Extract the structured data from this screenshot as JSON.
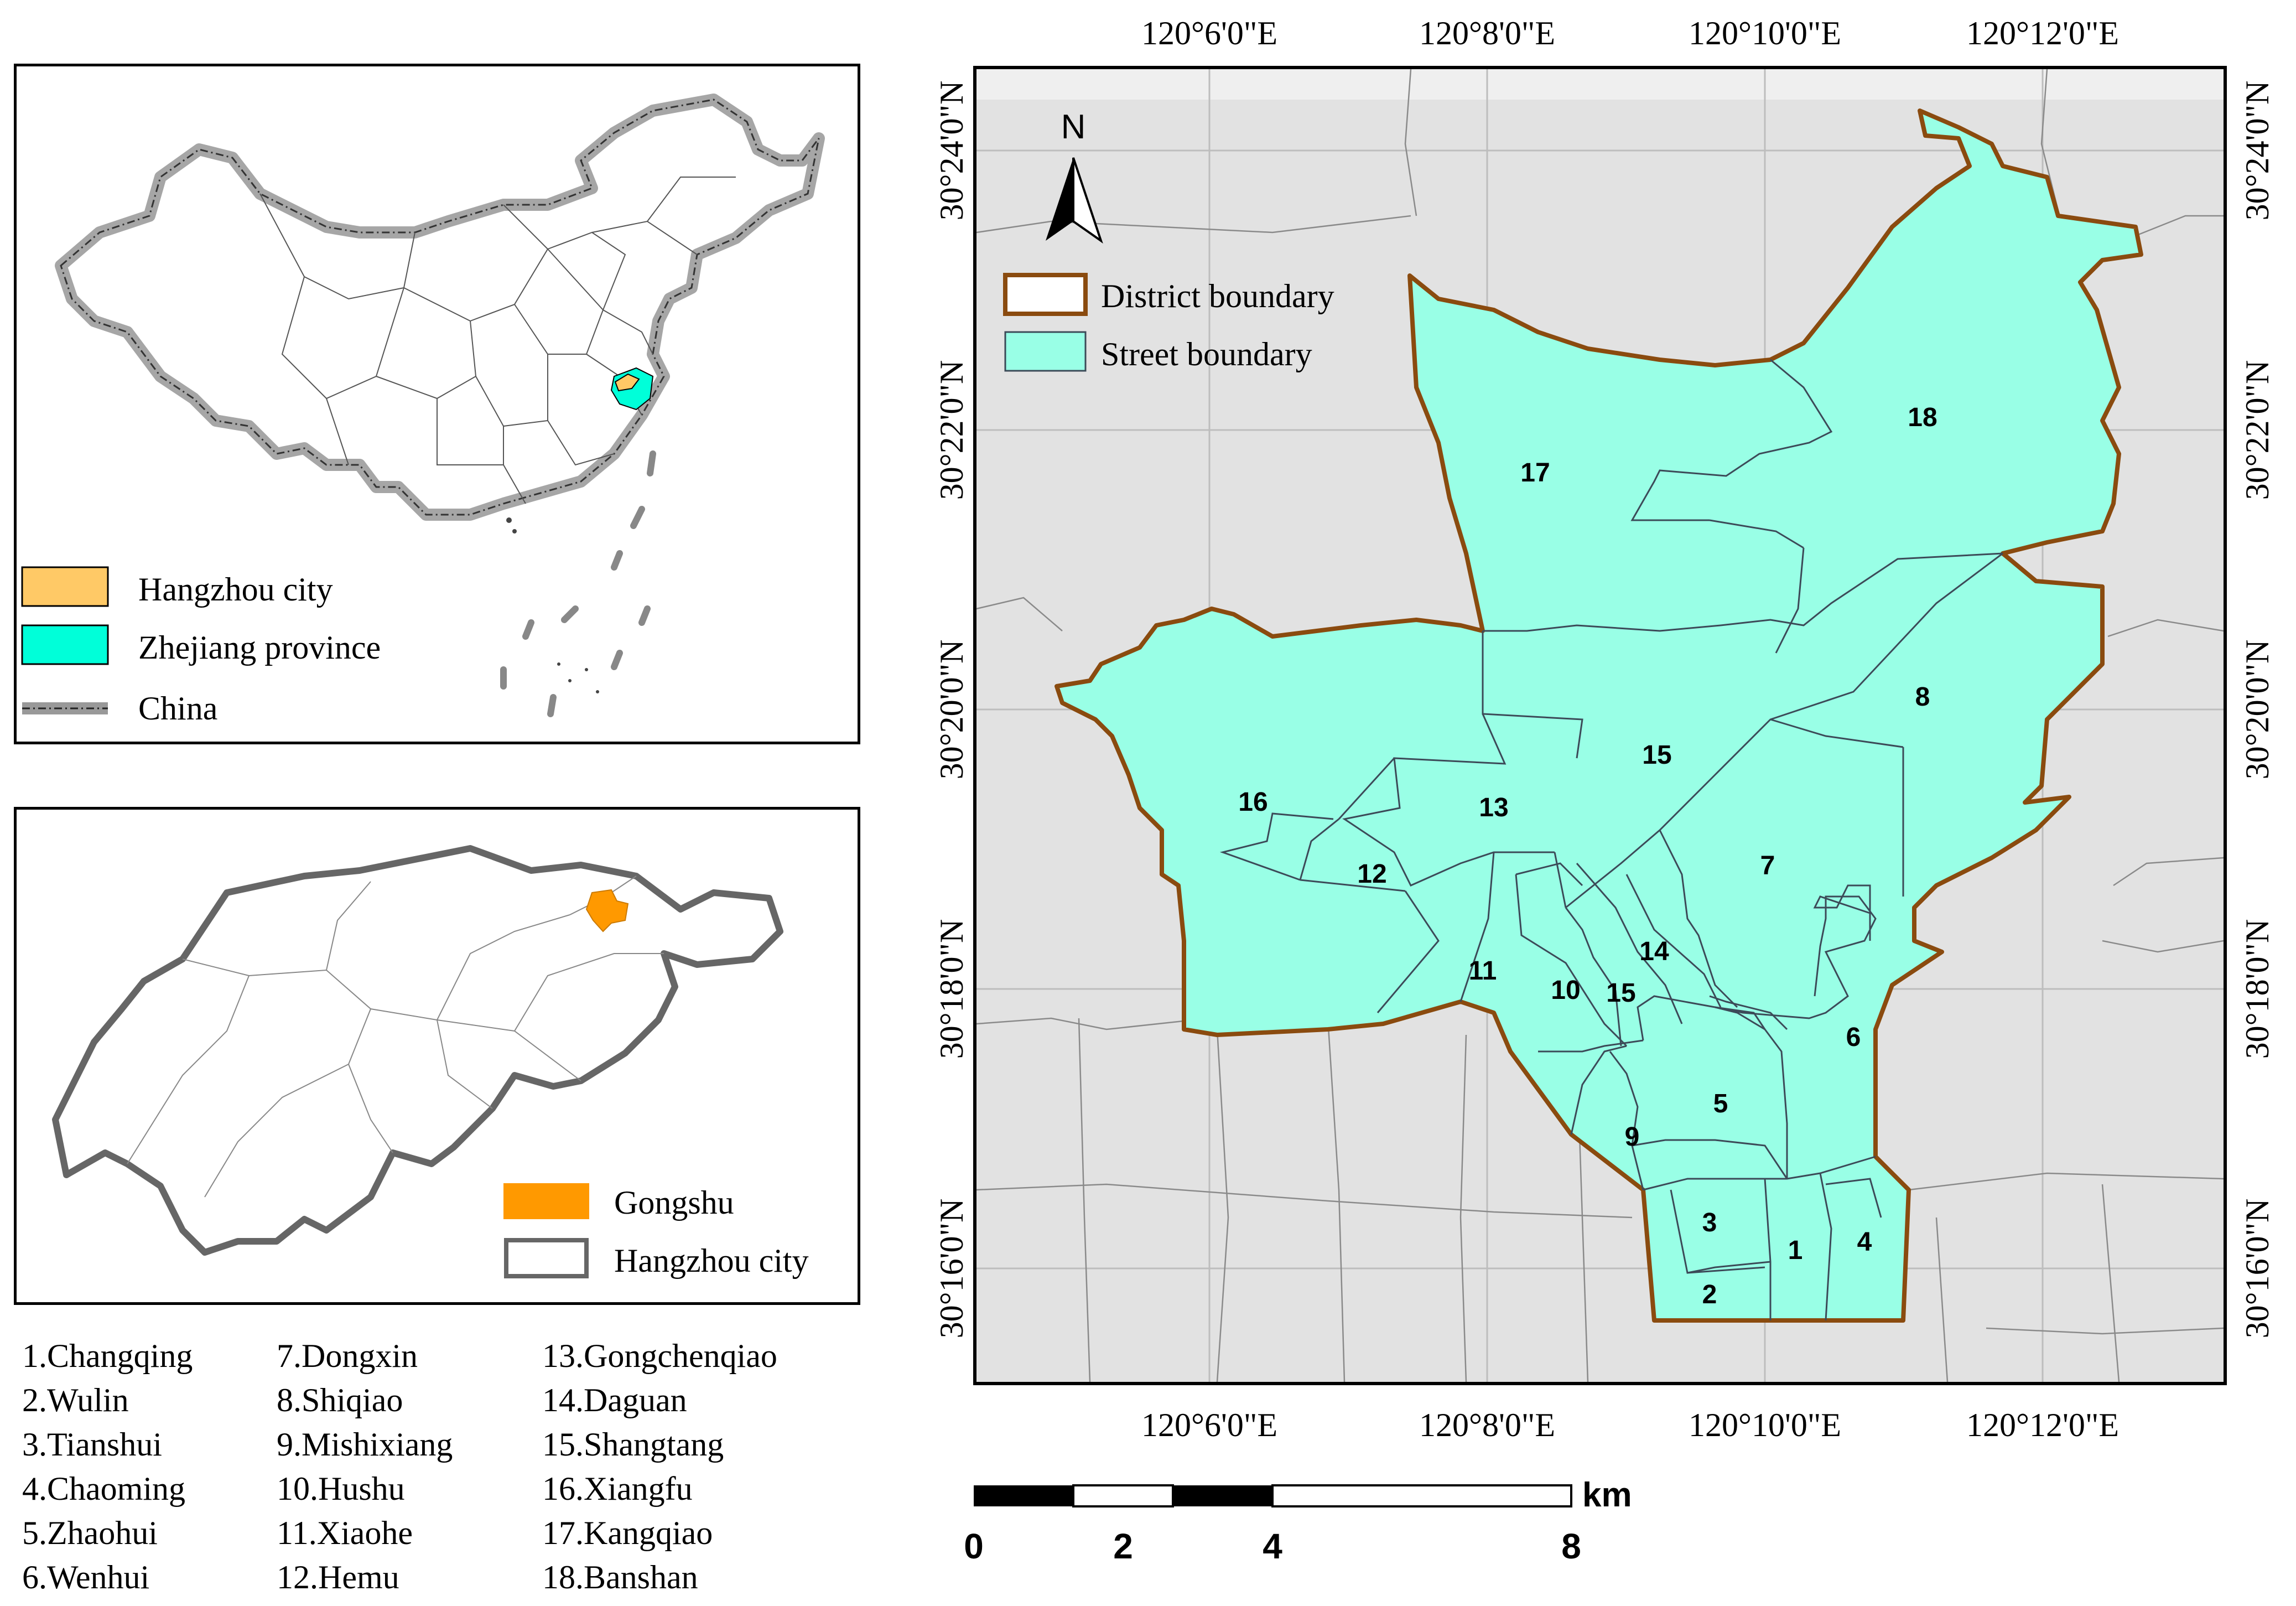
{
  "map": {
    "north_label": "N",
    "scalebar": {
      "unit": "km",
      "ticks": [
        "0",
        "2",
        "4",
        "8"
      ]
    },
    "lon_ticks": [
      "120°6'0\"E",
      "120°8'0\"E",
      "120°10'0\"E",
      "120°12'0\"E"
    ],
    "lat_ticks": [
      "30°24'0\"N",
      "30°22'0\"N",
      "30°20'0\"N",
      "30°18'0\"N",
      "30°16'0\"N"
    ],
    "legend": [
      {
        "label": "District boundary",
        "color": "#8a4b0f"
      },
      {
        "label": "Street boundary",
        "color": "#99ffe6"
      }
    ],
    "region_labels": [
      "1",
      "2",
      "3",
      "4",
      "5",
      "6",
      "7",
      "8",
      "9",
      "10",
      "11",
      "12",
      "13",
      "14",
      "15",
      "15",
      "16",
      "17",
      "18"
    ],
    "colors": {
      "district": "#8a4b0f",
      "street_fill": "#99ffe6",
      "background": "#e2e2e2"
    }
  },
  "inset_china": {
    "legend": [
      {
        "label": "Hangzhou city",
        "color": "#ffc966"
      },
      {
        "label": "Zhejiang province",
        "color": "#00ffd9"
      },
      {
        "label": "China",
        "color": "#999999"
      }
    ]
  },
  "inset_hangzhou": {
    "legend": [
      {
        "label": "Gongshu",
        "color": "#ff9900"
      },
      {
        "label": "Hangzhou city",
        "color": "#666666"
      }
    ]
  },
  "street_list": {
    "col1": [
      "1.Changqing",
      "2.Wulin",
      "3.Tianshui",
      "4.Chaoming",
      "5.Zhaohui",
      "6.Wenhui"
    ],
    "col2": [
      "7.Dongxin",
      "8.Shiqiao",
      "9.Mishixiang",
      "10.Hushu",
      "11.Xiaohe",
      "12.Hemu"
    ],
    "col3": [
      "13.Gongchenqiao",
      "14.Daguan",
      "15.Shangtang",
      "16.Xiangfu",
      "17.Kangqiao",
      "18.Banshan"
    ]
  }
}
